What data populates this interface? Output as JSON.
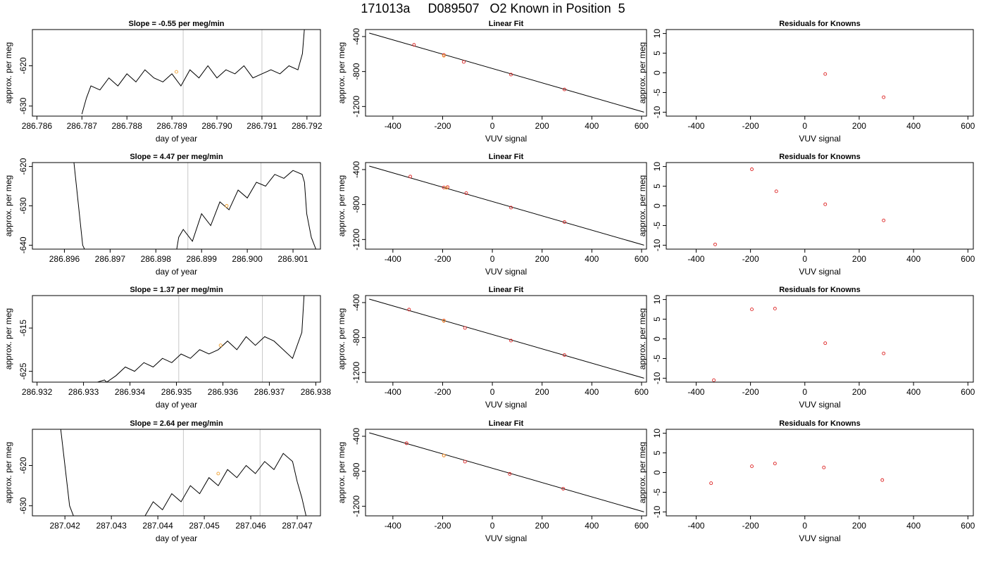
{
  "figure": {
    "title": "171013a     D089507   O2 Known in Position  5"
  },
  "chart_data": [
    {
      "type": "line",
      "row": 0,
      "col": 0,
      "title": "Slope =  -0.55  per meg/min",
      "xlabel": "day of year",
      "ylabel": "approx. per meg",
      "xlim": [
        286.7859,
        286.7923
      ],
      "ylim": [
        -632.5,
        -611
      ],
      "xticks": [
        286.786,
        286.787,
        286.788,
        286.789,
        286.79,
        286.791,
        286.792
      ],
      "xtick_labels": [
        "286.786",
        "286.787",
        "286.788",
        "286.789",
        "286.790",
        "286.791",
        "286.792"
      ],
      "yticks": [
        -630,
        -620
      ],
      "ytick_labels": [
        "-630",
        "-620"
      ],
      "vlines": [
        286.78925,
        286.791
      ],
      "x": [
        286.787,
        286.7871,
        286.7872,
        286.7874,
        286.7876,
        286.7878,
        286.788,
        286.7882,
        286.7884,
        286.7886,
        286.7888,
        286.789,
        286.7892,
        286.7894,
        286.7896,
        286.7898,
        286.79,
        286.7902,
        286.7904,
        286.7906,
        286.7908,
        286.791,
        286.7912,
        286.7914,
        286.7916,
        286.7918,
        286.7919,
        286.79195
      ],
      "y": [
        -632,
        -628,
        -625,
        -626,
        -623,
        -625,
        -622,
        -624,
        -621,
        -623,
        -624,
        -622,
        -625,
        -621,
        -623,
        -620,
        -623,
        -621,
        -622,
        -620,
        -623,
        -622,
        -621,
        -622,
        -620,
        -621,
        -617,
        -610
      ],
      "marker": {
        "x": 286.7891,
        "y": -621.5
      }
    },
    {
      "type": "scatter",
      "row": 0,
      "col": 1,
      "title": "Linear Fit",
      "xlabel": "VUV signal",
      "ylabel": "approx. per meg",
      "xlim": [
        -510,
        620
      ],
      "ylim": [
        -1310,
        -320
      ],
      "xticks": [
        -400,
        -200,
        0,
        200,
        400,
        600
      ],
      "xtick_labels": [
        "-400",
        "-200",
        "0",
        "200",
        "400",
        "600"
      ],
      "yticks": [
        -1200,
        -800,
        -400
      ],
      "ytick_labels": [
        "-1200",
        "-800",
        "-400"
      ],
      "x": [
        -315,
        -195,
        -115,
        75,
        290
      ],
      "y": [
        -495,
        -610,
        -690,
        -835,
        -1005
      ],
      "fit": {
        "x1": -495,
        "y1": -360,
        "x2": 610,
        "y2": -1265
      },
      "marker": {
        "x": -195,
        "y": -620
      }
    },
    {
      "type": "scatter",
      "row": 0,
      "col": 2,
      "title": "Residuals for Knowns",
      "xlabel": "VUV signal",
      "ylabel": "approx. per meg",
      "xlim": [
        -510,
        620
      ],
      "ylim": [
        -11,
        11
      ],
      "xticks": [
        -400,
        -200,
        0,
        200,
        400,
        600
      ],
      "xtick_labels": [
        "-400",
        "-200",
        "0",
        "200",
        "400",
        "600"
      ],
      "yticks": [
        -10,
        -5,
        0,
        5,
        10
      ],
      "ytick_labels": [
        "-10",
        "-5",
        "0",
        "5",
        "10"
      ],
      "x": [
        75,
        290
      ],
      "y": [
        -0.3,
        -6.2
      ]
    },
    {
      "type": "line",
      "row": 1,
      "col": 0,
      "title": "Slope =  4.47  per meg/min",
      "xlabel": "day of year",
      "ylabel": "approx. per meg",
      "xlim": [
        286.8953,
        286.9016
      ],
      "ylim": [
        -641,
        -619
      ],
      "xticks": [
        286.896,
        286.897,
        286.898,
        286.899,
        286.9,
        286.901
      ],
      "xtick_labels": [
        "286.896",
        "286.897",
        "286.898",
        "286.899",
        "286.900",
        "286.901"
      ],
      "yticks": [
        -640,
        -630,
        -620
      ],
      "ytick_labels": [
        "-640",
        "-630",
        "-620"
      ],
      "vlines": [
        286.8987,
        286.9003
      ],
      "x": [
        286.8962,
        286.8964,
        286.8966,
        286.8984,
        286.8985,
        286.8986,
        286.8988,
        286.899,
        286.8992,
        286.8994,
        286.8996,
        286.8998,
        286.9,
        286.9002,
        286.9004,
        286.9006,
        286.9008,
        286.901,
        286.9012,
        286.90125,
        286.9013,
        286.9014,
        286.9015
      ],
      "y": [
        -618,
        -640,
        -645,
        -645,
        -638,
        -636,
        -639,
        -632,
        -635,
        -629,
        -631,
        -626,
        -628,
        -624,
        -625,
        -622,
        -623,
        -621,
        -622,
        -624,
        -632,
        -638,
        -641
      ],
      "marker": {
        "x": 286.89955,
        "y": -630
      }
    },
    {
      "type": "scatter",
      "row": 1,
      "col": 1,
      "title": "Linear Fit",
      "xlabel": "VUV signal",
      "ylabel": "approx. per meg",
      "xlim": [
        -510,
        620
      ],
      "ylim": [
        -1310,
        -320
      ],
      "xticks": [
        -400,
        -200,
        0,
        200,
        400,
        600
      ],
      "xtick_labels": [
        "-400",
        "-200",
        "0",
        "200",
        "400",
        "600"
      ],
      "yticks": [
        -1200,
        -800,
        -400
      ],
      "ytick_labels": [
        "-1200",
        "-800",
        "-400"
      ],
      "x": [
        -330,
        -195,
        -180,
        -105,
        75,
        290
      ],
      "y": [
        -480,
        -605,
        -600,
        -670,
        -835,
        -1000
      ],
      "fit": {
        "x1": -495,
        "y1": -360,
        "x2": 610,
        "y2": -1265
      },
      "marker": {
        "x": -185,
        "y": -610
      }
    },
    {
      "type": "scatter",
      "row": 1,
      "col": 2,
      "title": "Residuals for Knowns",
      "xlabel": "VUV signal",
      "ylabel": "approx. per meg",
      "xlim": [
        -510,
        620
      ],
      "ylim": [
        -11,
        11
      ],
      "xticks": [
        -400,
        -200,
        0,
        200,
        400,
        600
      ],
      "xtick_labels": [
        "-400",
        "-200",
        "0",
        "200",
        "400",
        "600"
      ],
      "yticks": [
        -10,
        -5,
        0,
        5,
        10
      ],
      "ytick_labels": [
        "-10",
        "-5",
        "0",
        "5",
        "10"
      ],
      "x": [
        -330,
        -195,
        -105,
        75,
        290
      ],
      "y": [
        -9.8,
        9.3,
        3.7,
        0.4,
        -3.7
      ]
    },
    {
      "type": "line",
      "row": 2,
      "col": 0,
      "title": "Slope =  1.37  per meg/min",
      "xlabel": "day of year",
      "ylabel": "approx. per meg",
      "xlim": [
        286.9319,
        286.9381
      ],
      "ylim": [
        -627.5,
        -607.5
      ],
      "xticks": [
        286.932,
        286.933,
        286.934,
        286.935,
        286.936,
        286.937,
        286.938
      ],
      "xtick_labels": [
        "286.932",
        "286.933",
        "286.934",
        "286.935",
        "286.936",
        "286.937",
        "286.938"
      ],
      "yticks": [
        -625,
        -615
      ],
      "ytick_labels": [
        "-625",
        "-615"
      ],
      "vlines": [
        286.93505,
        286.93685
      ],
      "x": [
        286.9333,
        286.93345,
        286.9335,
        286.9337,
        286.9339,
        286.9341,
        286.9343,
        286.9345,
        286.9347,
        286.9349,
        286.9351,
        286.9353,
        286.9355,
        286.9357,
        286.9359,
        286.9361,
        286.9363,
        286.9365,
        286.9367,
        286.9369,
        286.9371,
        286.9373,
        286.9375,
        286.9377,
        286.93775
      ],
      "y": [
        -627.5,
        -627,
        -627.5,
        -626,
        -624,
        -625,
        -623,
        -624,
        -622,
        -623,
        -621,
        -622,
        -620,
        -621,
        -620,
        -618,
        -620,
        -617,
        -619,
        -617,
        -618,
        -620,
        -622,
        -616,
        -607
      ],
      "marker": {
        "x": 286.93595,
        "y": -619
      }
    },
    {
      "type": "scatter",
      "row": 2,
      "col": 1,
      "title": "Linear Fit",
      "xlabel": "VUV signal",
      "ylabel": "approx. per meg",
      "xlim": [
        -510,
        620
      ],
      "ylim": [
        -1310,
        -320
      ],
      "xticks": [
        -400,
        -200,
        0,
        200,
        400,
        600
      ],
      "xtick_labels": [
        "-400",
        "-200",
        "0",
        "200",
        "400",
        "600"
      ],
      "yticks": [
        -1200,
        -800,
        -400
      ],
      "ytick_labels": [
        "-1200",
        "-800",
        "-400"
      ],
      "x": [
        -335,
        -195,
        -110,
        75,
        290
      ],
      "y": [
        -480,
        -605,
        -690,
        -835,
        -1000
      ],
      "fit": {
        "x1": -495,
        "y1": -360,
        "x2": 610,
        "y2": -1265
      },
      "marker": {
        "x": -195,
        "y": -610
      }
    },
    {
      "type": "scatter",
      "row": 2,
      "col": 2,
      "title": "Residuals for Knowns",
      "xlabel": "VUV signal",
      "ylabel": "approx. per meg",
      "xlim": [
        -510,
        620
      ],
      "ylim": [
        -11,
        11
      ],
      "xticks": [
        -400,
        -200,
        0,
        200,
        400,
        600
      ],
      "xtick_labels": [
        "-400",
        "-200",
        "0",
        "200",
        "400",
        "600"
      ],
      "yticks": [
        -10,
        -5,
        0,
        5,
        10
      ],
      "ytick_labels": [
        "-10",
        "-5",
        "0",
        "5",
        "10"
      ],
      "x": [
        -335,
        -195,
        -110,
        75,
        290
      ],
      "y": [
        -10.5,
        7.5,
        7.7,
        -1.1,
        -3.7
      ]
    },
    {
      "type": "line",
      "row": 3,
      "col": 0,
      "title": "Slope =  2.64  per meg/min",
      "xlabel": "day of year",
      "ylabel": "approx. per meg",
      "xlim": [
        287.0413,
        287.0475
      ],
      "ylim": [
        -632.5,
        -611
      ],
      "xticks": [
        287.042,
        287.043,
        287.044,
        287.045,
        287.046,
        287.047
      ],
      "xtick_labels": [
        "287.042",
        "287.043",
        "287.044",
        "287.045",
        "287.046",
        "287.047"
      ],
      "yticks": [
        -630,
        -620
      ],
      "ytick_labels": [
        "-630",
        "-620"
      ],
      "vlines": [
        287.04455,
        287.0462
      ],
      "x": [
        287.0419,
        287.0421,
        287.0422,
        287.0437,
        287.0439,
        287.0441,
        287.0443,
        287.0445,
        287.0447,
        287.0449,
        287.0451,
        287.0453,
        287.0455,
        287.0457,
        287.0459,
        287.0461,
        287.0463,
        287.0465,
        287.0467,
        287.0469,
        287.047,
        287.0471,
        287.0472
      ],
      "y": [
        -610,
        -630,
        -633,
        -633,
        -629,
        -631,
        -627,
        -629,
        -625,
        -627,
        -623,
        -625,
        -621,
        -623,
        -620,
        -622,
        -619,
        -621,
        -617,
        -619,
        -624,
        -628,
        -633
      ],
      "marker": {
        "x": 287.0453,
        "y": -622
      }
    },
    {
      "type": "scatter",
      "row": 3,
      "col": 1,
      "title": "Linear Fit",
      "xlabel": "VUV signal",
      "ylabel": "approx. per meg",
      "xlim": [
        -510,
        620
      ],
      "ylim": [
        -1310,
        -320
      ],
      "xticks": [
        -400,
        -200,
        0,
        200,
        400,
        600
      ],
      "xtick_labels": [
        "-400",
        "-200",
        "0",
        "200",
        "400",
        "600"
      ],
      "yticks": [
        -1200,
        -800,
        -400
      ],
      "ytick_labels": [
        "-1200",
        "-800",
        "-400"
      ],
      "x": [
        -345,
        -195,
        -110,
        70,
        285
      ],
      "y": [
        -480,
        -620,
        -690,
        -830,
        -1000
      ],
      "fit": {
        "x1": -495,
        "y1": -360,
        "x2": 610,
        "y2": -1265
      },
      "marker": {
        "x": -195,
        "y": -620
      }
    },
    {
      "type": "scatter",
      "row": 3,
      "col": 2,
      "title": "Residuals for Knowns",
      "xlabel": "VUV signal",
      "ylabel": "approx. per meg",
      "xlim": [
        -510,
        620
      ],
      "ylim": [
        -11,
        11
      ],
      "xticks": [
        -400,
        -200,
        0,
        200,
        400,
        600
      ],
      "xtick_labels": [
        "-400",
        "-200",
        "0",
        "200",
        "400",
        "600"
      ],
      "yticks": [
        -10,
        -5,
        0,
        5,
        10
      ],
      "ytick_labels": [
        "-10",
        "-5",
        "0",
        "5",
        "10"
      ],
      "x": [
        -345,
        -195,
        -110,
        70,
        285
      ],
      "y": [
        -2.7,
        1.6,
        2.3,
        1.3,
        -1.9
      ]
    }
  ]
}
